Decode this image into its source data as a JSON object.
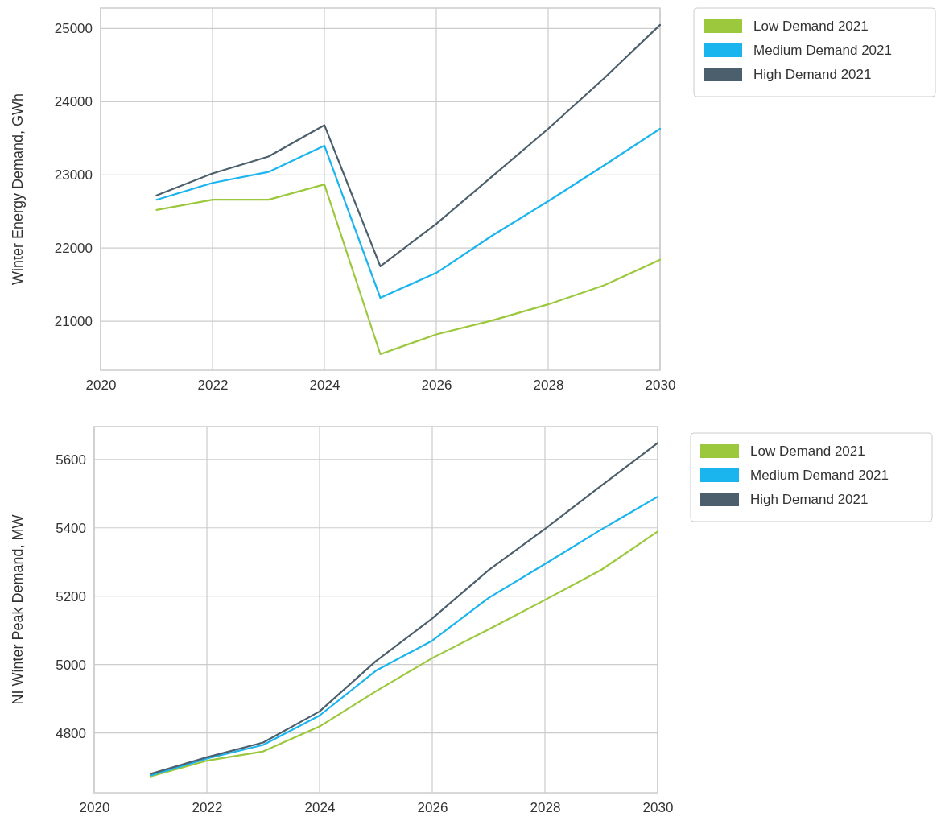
{
  "chart_data": [
    {
      "type": "line",
      "ylabel": "Winter Energy Demand, GWh",
      "x": [
        2021,
        2022,
        2023,
        2024,
        2025,
        2026,
        2027,
        2028,
        2029,
        2030
      ],
      "series": [
        {
          "name": "Low Demand 2021",
          "color": "#9bc83c",
          "values": [
            22520,
            22660,
            22660,
            22870,
            20550,
            20820,
            21010,
            21230,
            21490,
            21840
          ]
        },
        {
          "name": "Medium Demand 2021",
          "color": "#1ab4ef",
          "values": [
            22660,
            22890,
            23040,
            23400,
            21320,
            21660,
            22170,
            22640,
            23130,
            23630
          ]
        },
        {
          "name": "High Demand 2021",
          "color": "#4b5f6d",
          "values": [
            22720,
            23020,
            23250,
            23680,
            21750,
            22330,
            22980,
            23630,
            24320,
            25050
          ]
        }
      ],
      "xlim": [
        2020,
        2030
      ],
      "xticks": [
        2020,
        2022,
        2024,
        2026,
        2028,
        2030
      ],
      "ylim": [
        20330,
        25280
      ],
      "yticks": [
        21000,
        22000,
        23000,
        24000,
        25000
      ],
      "grid": true,
      "legend": "top right"
    },
    {
      "type": "line",
      "ylabel": "NI Winter Peak Demand, MW",
      "x": [
        2021,
        2022,
        2023,
        2024,
        2025,
        2026,
        2027,
        2028,
        2029,
        2030
      ],
      "series": [
        {
          "name": "Low Demand 2021",
          "color": "#9bc83c",
          "values": [
            4673,
            4719,
            4746,
            4819,
            4922,
            5019,
            5103,
            5189,
            5277,
            5389
          ]
        },
        {
          "name": "Medium Demand 2021",
          "color": "#1ab4ef",
          "values": [
            4676,
            4725,
            4765,
            4851,
            4982,
            5070,
            5195,
            5294,
            5395,
            5491
          ]
        },
        {
          "name": "High Demand 2021",
          "color": "#4b5f6d",
          "values": [
            4680,
            4729,
            4772,
            4863,
            5010,
            5135,
            5276,
            5397,
            5523,
            5648
          ]
        }
      ],
      "xlim": [
        2020,
        2030
      ],
      "xticks": [
        2020,
        2022,
        2024,
        2026,
        2028,
        2030
      ],
      "ylim": [
        4625,
        5696
      ],
      "yticks": [
        4800,
        5000,
        5200,
        5400,
        5600
      ],
      "grid": true,
      "legend": "top right"
    }
  ]
}
